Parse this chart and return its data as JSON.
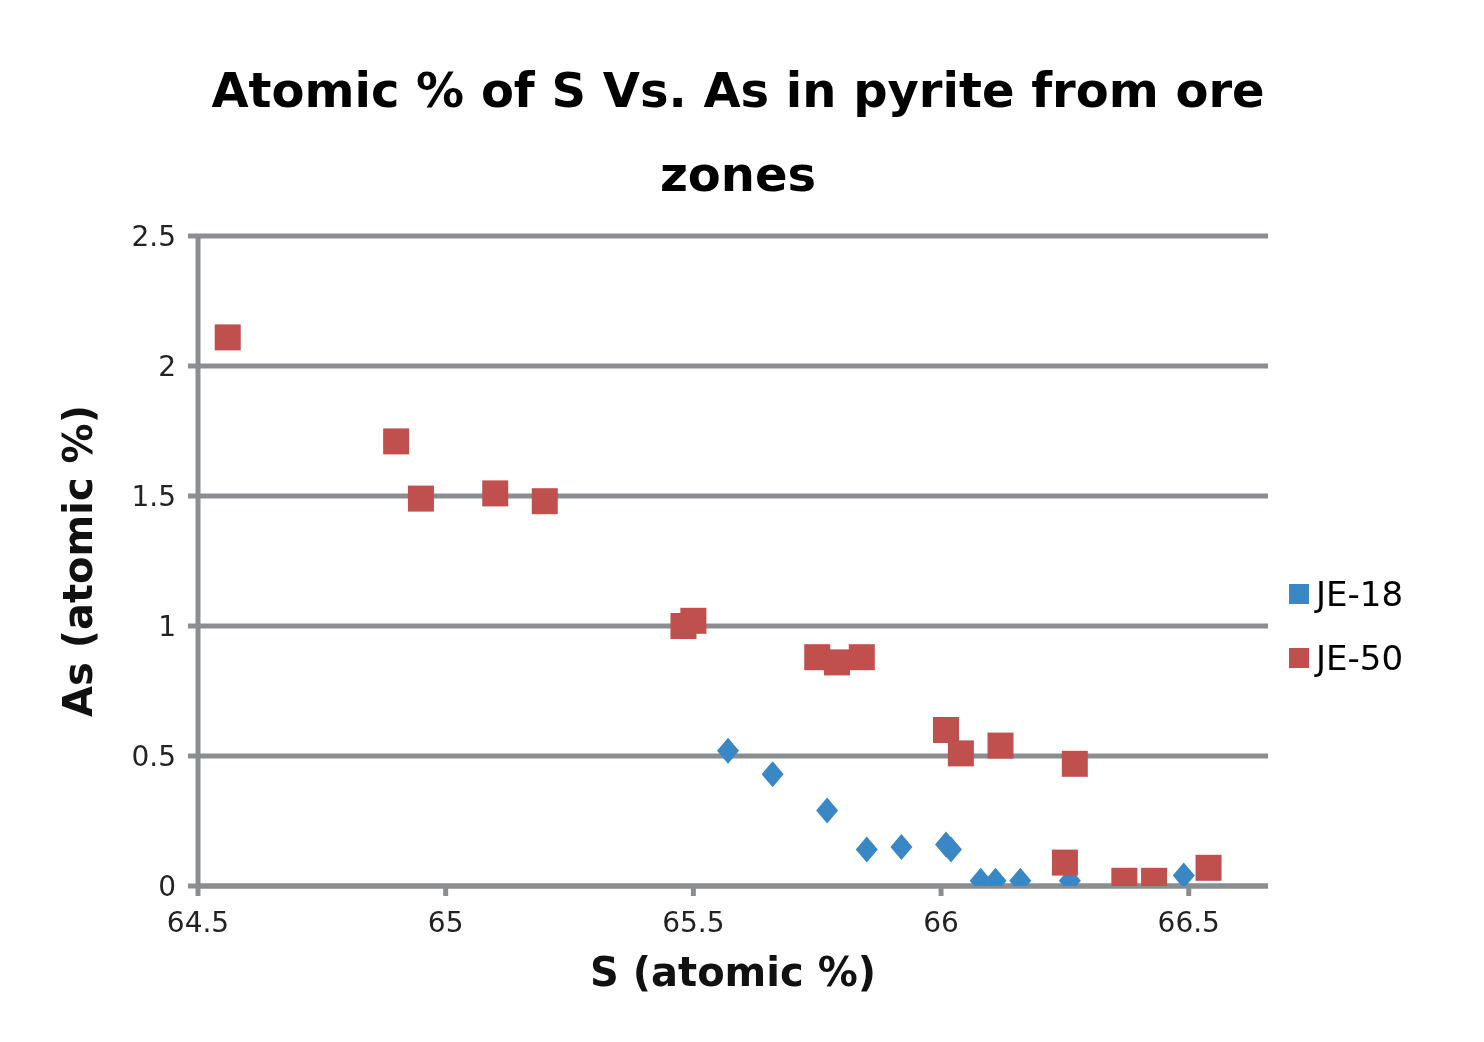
{
  "chart_data": {
    "type": "scatter",
    "title": "Atomic % of S Vs. As in pyrite from ore zones",
    "xlabel": "S (atomic %)",
    "ylabel": "As (atomic %)",
    "xlim": [
      64.5,
      66.66
    ],
    "xticks": [
      64.5,
      65,
      65.5,
      66,
      66.5
    ],
    "ylim": [
      0,
      2.5
    ],
    "yticks": [
      0,
      0.5,
      1,
      1.5,
      2,
      2.5
    ],
    "grid": "y",
    "legend": "right",
    "series": [
      {
        "name": "JE-18",
        "color": "#3a87c6",
        "marker": "diamond",
        "x": [
          65.57,
          65.66,
          65.77,
          65.85,
          65.92,
          66.01,
          66.02,
          66.08,
          66.11,
          66.16,
          66.26,
          66.49
        ],
        "values": [
          0.52,
          0.43,
          0.29,
          0.14,
          0.15,
          0.16,
          0.14,
          0.02,
          0.02,
          0.02,
          0.02,
          0.04
        ]
      },
      {
        "name": "JE-50",
        "color": "#c0504d",
        "marker": "square",
        "x": [
          64.56,
          64.9,
          64.95,
          65.1,
          65.2,
          65.48,
          65.5,
          65.75,
          65.79,
          65.84,
          66.01,
          66.04,
          66.12,
          66.27,
          66.25,
          66.37,
          66.43,
          66.54
        ],
        "values": [
          2.11,
          1.71,
          1.49,
          1.51,
          1.48,
          1.0,
          1.02,
          0.88,
          0.86,
          0.88,
          0.6,
          0.51,
          0.54,
          0.47,
          0.09,
          0.02,
          0.02,
          0.07
        ]
      }
    ]
  }
}
